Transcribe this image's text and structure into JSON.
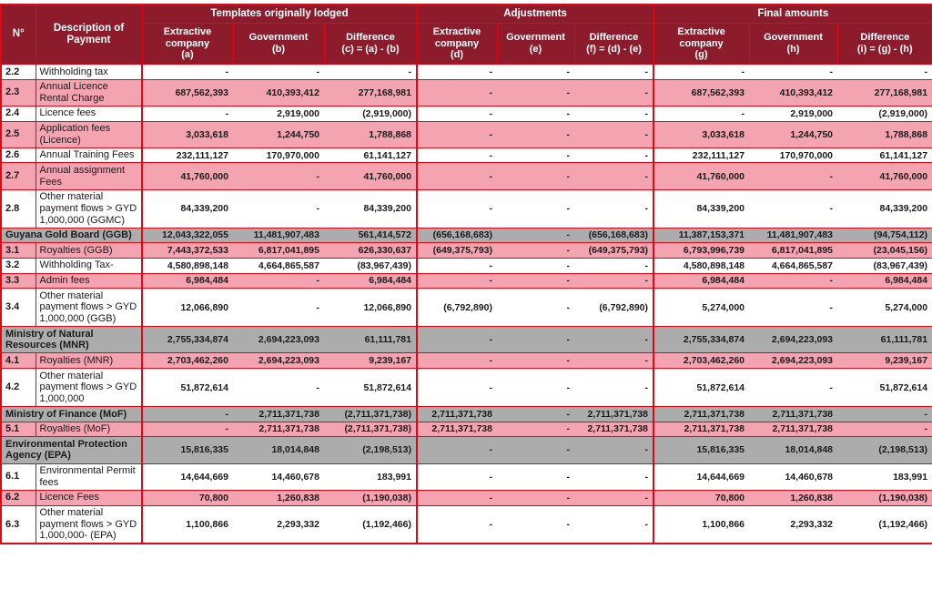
{
  "colors": {
    "header-bg": "#8C1B2C",
    "grid-red": "#E30613",
    "row-pink": "#F4A3B1",
    "section-gray": "#ACACAC",
    "text": "#1A1A1A"
  },
  "header": {
    "no_label": "N°",
    "desc_label": "Description of Payment",
    "groups": [
      "Templates originally lodged",
      "Adjustments",
      "Final amounts"
    ],
    "subcols": [
      "Extractive\ncompany\n(a)",
      "Government\n(b)",
      "Difference\n(c) = (a) - (b)",
      "Extractive\ncompany\n(d)",
      "Government\n(e)",
      "Difference\n(f) = (d) - (e)",
      "Extractive\ncompany\n(g)",
      "Government\n(h)",
      "Difference\n(i) = (g) - (h)"
    ]
  },
  "table": {
    "rows": [
      {
        "no": "2.2",
        "desc": "Withholding tax",
        "style": "plain",
        "cells": [
          "-",
          "-",
          "-",
          "-",
          "-",
          "-",
          "-",
          "-",
          "-"
        ]
      },
      {
        "no": "2.3",
        "desc": "Annual Licence Rental Charge",
        "style": "alt",
        "cells": [
          "687,562,393",
          "410,393,412",
          "277,168,981",
          "-",
          "-",
          "-",
          "687,562,393",
          "410,393,412",
          "277,168,981"
        ]
      },
      {
        "no": "2.4",
        "desc": "Licence fees",
        "style": "plain",
        "cells": [
          "-",
          "2,919,000",
          "(2,919,000)",
          "-",
          "-",
          "-",
          "-",
          "2,919,000",
          "(2,919,000)"
        ]
      },
      {
        "no": "2.5",
        "desc": "Application fees (Licence)",
        "style": "alt",
        "cells": [
          "3,033,618",
          "1,244,750",
          "1,788,868",
          "-",
          "-",
          "-",
          "3,033,618",
          "1,244,750",
          "1,788,868"
        ]
      },
      {
        "no": "2.6",
        "desc": "Annual Training Fees",
        "style": "plain",
        "cells": [
          "232,111,127",
          "170,970,000",
          "61,141,127",
          "-",
          "-",
          "-",
          "232,111,127",
          "170,970,000",
          "61,141,127"
        ]
      },
      {
        "no": "2.7",
        "desc": "Annual assignment Fees",
        "style": "alt",
        "cells": [
          "41,760,000",
          "-",
          "41,760,000",
          "-",
          "-",
          "-",
          "41,760,000",
          "-",
          "41,760,000"
        ]
      },
      {
        "no": "2.8",
        "desc": "Other material payment flows > GYD 1,000,000 (GGMC)",
        "style": "plain",
        "cells": [
          "84,339,200",
          "-",
          "84,339,200",
          "-",
          "-",
          "-",
          "84,339,200",
          "-",
          "84,339,200"
        ]
      },
      {
        "no": "",
        "desc": "Guyana Gold Board (GGB)",
        "style": "section",
        "cells": [
          "12,043,322,055",
          "11,481,907,483",
          "561,414,572",
          "(656,168,683)",
          "-",
          "(656,168,683)",
          "11,387,153,371",
          "11,481,907,483",
          "(94,754,112)"
        ]
      },
      {
        "no": "3.1",
        "desc": "Royalties (GGB)",
        "style": "alt",
        "cells": [
          "7,443,372,533",
          "6,817,041,895",
          "626,330,637",
          "(649,375,793)",
          "-",
          "(649,375,793)",
          "6,793,996,739",
          "6,817,041,895",
          "(23,045,156)"
        ]
      },
      {
        "no": "3.2",
        "desc": "Withholding Tax-",
        "style": "plain",
        "cells": [
          "4,580,898,148",
          "4,664,865,587",
          "(83,967,439)",
          "-",
          "-",
          "-",
          "4,580,898,148",
          "4,664,865,587",
          "(83,967,439)"
        ]
      },
      {
        "no": "3.3",
        "desc": "Admin fees",
        "style": "alt",
        "cells": [
          "6,984,484",
          "-",
          "6,984,484",
          "-",
          "-",
          "-",
          "6,984,484",
          "-",
          "6,984,484"
        ]
      },
      {
        "no": "3.4",
        "desc": "Other material payment flows > GYD 1,000,000 (GGB)",
        "style": "plain",
        "cells": [
          "12,066,890",
          "-",
          "12,066,890",
          "(6,792,890)",
          "-",
          "(6,792,890)",
          "5,274,000",
          "-",
          "5,274,000"
        ]
      },
      {
        "no": "",
        "desc": "Ministry of Natural Resources (MNR)",
        "style": "section",
        "cells": [
          "2,755,334,874",
          "2,694,223,093",
          "61,111,781",
          "-",
          "-",
          "-",
          "2,755,334,874",
          "2,694,223,093",
          "61,111,781"
        ]
      },
      {
        "no": "4.1",
        "desc": "Royalties (MNR)",
        "style": "alt",
        "cells": [
          "2,703,462,260",
          "2,694,223,093",
          "9,239,167",
          "-",
          "-",
          "-",
          "2,703,462,260",
          "2,694,223,093",
          "9,239,167"
        ]
      },
      {
        "no": "4.2",
        "desc": "Other material payment flows > GYD 1,000,000",
        "style": "plain",
        "cells": [
          "51,872,614",
          "-",
          "51,872,614",
          "-",
          "-",
          "-",
          "51,872,614",
          "-",
          "51,872,614"
        ]
      },
      {
        "no": "",
        "desc": "Ministry of Finance (MoF)",
        "style": "section",
        "cells": [
          "-",
          "2,711,371,738",
          "(2,711,371,738)",
          "2,711,371,738",
          "-",
          "2,711,371,738",
          "2,711,371,738",
          "2,711,371,738",
          "-"
        ]
      },
      {
        "no": "5.1",
        "desc": "Royalties (MoF)",
        "style": "alt",
        "cells": [
          "-",
          "2,711,371,738",
          "(2,711,371,738)",
          "2,711,371,738",
          "-",
          "2,711,371,738",
          "2,711,371,738",
          "2,711,371,738",
          "-"
        ]
      },
      {
        "no": "",
        "desc": "Environmental Protection Agency (EPA)",
        "style": "section",
        "cells": [
          "15,816,335",
          "18,014,848",
          "(2,198,513)",
          "-",
          "-",
          "-",
          "15,816,335",
          "18,014,848",
          "(2,198,513)"
        ]
      },
      {
        "no": "6.1",
        "desc": "Environmental Permit fees",
        "style": "plain",
        "cells": [
          "14,644,669",
          "14,460,678",
          "183,991",
          "-",
          "-",
          "-",
          "14,644,669",
          "14,460,678",
          "183,991"
        ]
      },
      {
        "no": "6.2",
        "desc": "Licence Fees",
        "style": "alt",
        "cells": [
          "70,800",
          "1,260,838",
          "(1,190,038)",
          "-",
          "-",
          "-",
          "70,800",
          "1,260,838",
          "(1,190,038)"
        ]
      },
      {
        "no": "6.3",
        "desc": "Other material payment flows > GYD 1,000,000- (EPA)",
        "style": "plain",
        "cells": [
          "1,100,866",
          "2,293,332",
          "(1,192,466)",
          "-",
          "-",
          "-",
          "1,100,866",
          "2,293,332",
          "(1,192,466)"
        ]
      }
    ]
  }
}
